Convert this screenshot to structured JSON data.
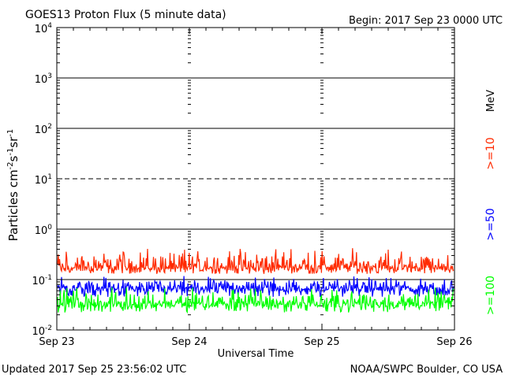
{
  "chart_data": {
    "type": "line",
    "title": "GOES13 Proton Flux (5 minute data)",
    "begin_label": "Begin: 2017 Sep 23 0000 UTC",
    "xlabel": "Universal Time",
    "ylabel": "Particles cm⁻²s⁻¹sr⁻¹",
    "y_scale": "log",
    "ylim": [
      0.01,
      10000
    ],
    "y_ticks": [
      {
        "base": "10",
        "exp": "4",
        "value": 10000
      },
      {
        "base": "10",
        "exp": "3",
        "value": 1000
      },
      {
        "base": "10",
        "exp": "2",
        "value": 100
      },
      {
        "base": "10",
        "exp": "1",
        "value": 10
      },
      {
        "base": "10",
        "exp": "0",
        "value": 1
      },
      {
        "base": "10",
        "exp": "-1",
        "value": 0.1
      },
      {
        "base": "10",
        "exp": "-2",
        "value": 0.01
      }
    ],
    "x_ticks": [
      "Sep 23",
      "Sep 24",
      "Sep 25",
      "Sep 26"
    ],
    "xlim": [
      "2017-09-23",
      "2017-09-26"
    ],
    "thresholds": [
      {
        "value": 10,
        "style": "dashed"
      },
      {
        "value": 1000,
        "style": "solid"
      },
      {
        "value": 100,
        "style": "solid"
      },
      {
        "value": 1,
        "style": "solid"
      },
      {
        "value": 0.1,
        "style": "solid"
      }
    ],
    "energy_unit": "MeV",
    "series": [
      {
        "name": ">=10",
        "color": "#ff2a00",
        "baseline": 0.17,
        "range": [
          0.13,
          0.42
        ]
      },
      {
        "name": ">=50",
        "color": "#0000ff",
        "baseline": 0.065,
        "range": [
          0.045,
          0.12
        ]
      },
      {
        "name": ">=100",
        "color": "#00ff00",
        "baseline": 0.032,
        "range": [
          0.022,
          0.07
        ]
      }
    ],
    "updated_label": "Updated 2017 Sep 25 23:56:02 UTC",
    "source_label": "NOAA/SWPC Boulder, CO USA"
  }
}
